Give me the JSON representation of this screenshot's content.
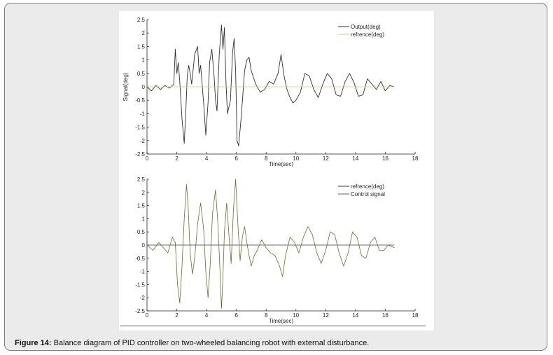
{
  "caption": {
    "label": "Figure 14:",
    "text": " Balance diagram of PID controller on two-wheeled balancing robot with external disturbance."
  },
  "chart_data": [
    {
      "type": "line",
      "xlabel": "Time(sec)",
      "ylabel": "Signal(deg)",
      "xlim": [
        0,
        18
      ],
      "ylim": [
        -2.5,
        2.5
      ],
      "xticks": [
        0,
        2,
        4,
        6,
        8,
        10,
        12,
        14,
        16,
        18
      ],
      "yticks": [
        -2.5,
        -2,
        -1.5,
        -1,
        -0.5,
        0,
        0.5,
        1,
        1.5,
        2,
        2.5
      ],
      "legend_position": "top-right",
      "series": [
        {
          "name": "Output(deg)",
          "color": "#2f2f2f",
          "x": [
            0,
            0.3,
            0.6,
            0.9,
            1.2,
            1.5,
            1.8,
            1.9,
            2.0,
            2.1,
            2.2,
            2.35,
            2.5,
            2.6,
            2.7,
            2.8,
            2.9,
            3.0,
            3.2,
            3.4,
            3.5,
            3.6,
            3.8,
            3.95,
            4.1,
            4.2,
            4.35,
            4.5,
            4.6,
            4.7,
            4.85,
            5.0,
            5.1,
            5.2,
            5.3,
            5.4,
            5.6,
            5.75,
            5.85,
            5.95,
            6.05,
            6.15,
            6.3,
            6.45,
            6.55,
            6.7,
            6.85,
            7.0,
            7.3,
            7.6,
            7.9,
            8.2,
            8.5,
            8.8,
            9.0,
            9.2,
            9.4,
            9.6,
            9.8,
            10.0,
            10.3,
            10.6,
            10.9,
            11.2,
            11.5,
            11.8,
            12.1,
            12.4,
            12.7,
            13.0,
            13.3,
            13.6,
            13.9,
            14.2,
            14.5,
            14.8,
            15.1,
            15.4,
            15.7,
            16.0,
            16.3,
            16.6
          ],
          "y": [
            0,
            -0.15,
            0.05,
            -0.1,
            0.05,
            -0.05,
            0.1,
            1.4,
            0.5,
            0.9,
            0.2,
            -1.2,
            -2.1,
            -1.0,
            0.4,
            0.8,
            0.5,
            0.1,
            1.2,
            1.5,
            0.5,
            0.8,
            -0.6,
            -1.8,
            -0.6,
            0.9,
            1.4,
            0.4,
            -0.5,
            -0.9,
            1.2,
            2.3,
            1.4,
            2.2,
            0.2,
            -1.0,
            -0.5,
            1.3,
            1.8,
            0.6,
            -2.0,
            -2.2,
            -1.3,
            -0.2,
            0.6,
            1.0,
            1.1,
            0.6,
            0.1,
            -0.2,
            -0.1,
            0.2,
            0.1,
            0.5,
            1.2,
            0.4,
            -0.1,
            -0.4,
            -0.6,
            -0.5,
            -0.2,
            0.5,
            0.4,
            -0.1,
            -0.4,
            0.1,
            0.5,
            0.3,
            -0.3,
            -0.35,
            0.2,
            0.5,
            0.15,
            -0.35,
            -0.3,
            0.3,
            0.1,
            -0.1,
            0.2,
            -0.15,
            0.05,
            0.0
          ]
        },
        {
          "name": "refrence(deg)",
          "color": "#d6c88c",
          "x": [
            0,
            16.6
          ],
          "y": [
            0,
            0
          ]
        }
      ]
    },
    {
      "type": "line",
      "xlabel": "Time(sec)",
      "ylabel": "",
      "xlim": [
        0,
        18
      ],
      "ylim": [
        -2.5,
        2.5
      ],
      "xticks": [
        0,
        2,
        4,
        6,
        8,
        10,
        12,
        14,
        16,
        18
      ],
      "yticks": [
        -2.5,
        -2,
        -1.5,
        -1,
        -0.5,
        0,
        0.5,
        1,
        1.5,
        2,
        2.5
      ],
      "legend_position": "top-right",
      "series": [
        {
          "name": "refrence(deg)",
          "color": "#3a3a3a",
          "x": [
            0,
            16.6
          ],
          "y": [
            0,
            0
          ]
        },
        {
          "name": "Control signal",
          "color": "#6a6a3a",
          "x": [
            0,
            0.4,
            0.8,
            1.1,
            1.4,
            1.7,
            1.9,
            2.05,
            2.2,
            2.35,
            2.5,
            2.65,
            2.75,
            2.9,
            3.05,
            3.2,
            3.4,
            3.6,
            3.8,
            3.95,
            4.1,
            4.25,
            4.4,
            4.6,
            4.75,
            4.9,
            5.0,
            5.1,
            5.2,
            5.35,
            5.5,
            5.65,
            5.8,
            5.95,
            6.1,
            6.25,
            6.4,
            6.55,
            6.7,
            6.85,
            7.0,
            7.2,
            7.4,
            7.7,
            8.0,
            8.3,
            8.6,
            8.9,
            9.1,
            9.3,
            9.6,
            9.9,
            10.2,
            10.5,
            10.8,
            11.1,
            11.4,
            11.7,
            12.0,
            12.3,
            12.6,
            12.9,
            13.2,
            13.5,
            13.8,
            14.1,
            14.4,
            14.7,
            15.0,
            15.3,
            15.6,
            15.9,
            16.2,
            16.6
          ],
          "y": [
            0,
            -0.2,
            0.1,
            -0.1,
            -0.3,
            0.3,
            0.1,
            -1.5,
            -2.2,
            -0.8,
            1.0,
            2.3,
            1.6,
            -0.3,
            -1.1,
            -0.5,
            0.8,
            1.6,
            0.6,
            -1.0,
            -2.0,
            -0.7,
            1.2,
            2.1,
            0.9,
            -1.0,
            -2.4,
            -1.2,
            0.5,
            1.6,
            0.4,
            -0.7,
            1.3,
            2.5,
            0.8,
            -0.6,
            0.3,
            0.7,
            0.1,
            -0.4,
            -0.8,
            -0.4,
            -0.2,
            0.2,
            -0.1,
            -0.3,
            -0.4,
            -0.8,
            -1.2,
            -0.4,
            0.3,
            0.1,
            -0.3,
            0.3,
            0.7,
            0.4,
            -0.3,
            -0.7,
            -0.2,
            0.5,
            0.4,
            -0.3,
            -0.8,
            -0.3,
            0.5,
            0.3,
            -0.4,
            -0.5,
            0.1,
            0.3,
            -0.2,
            -0.2,
            0.0,
            -0.1
          ]
        }
      ]
    }
  ]
}
